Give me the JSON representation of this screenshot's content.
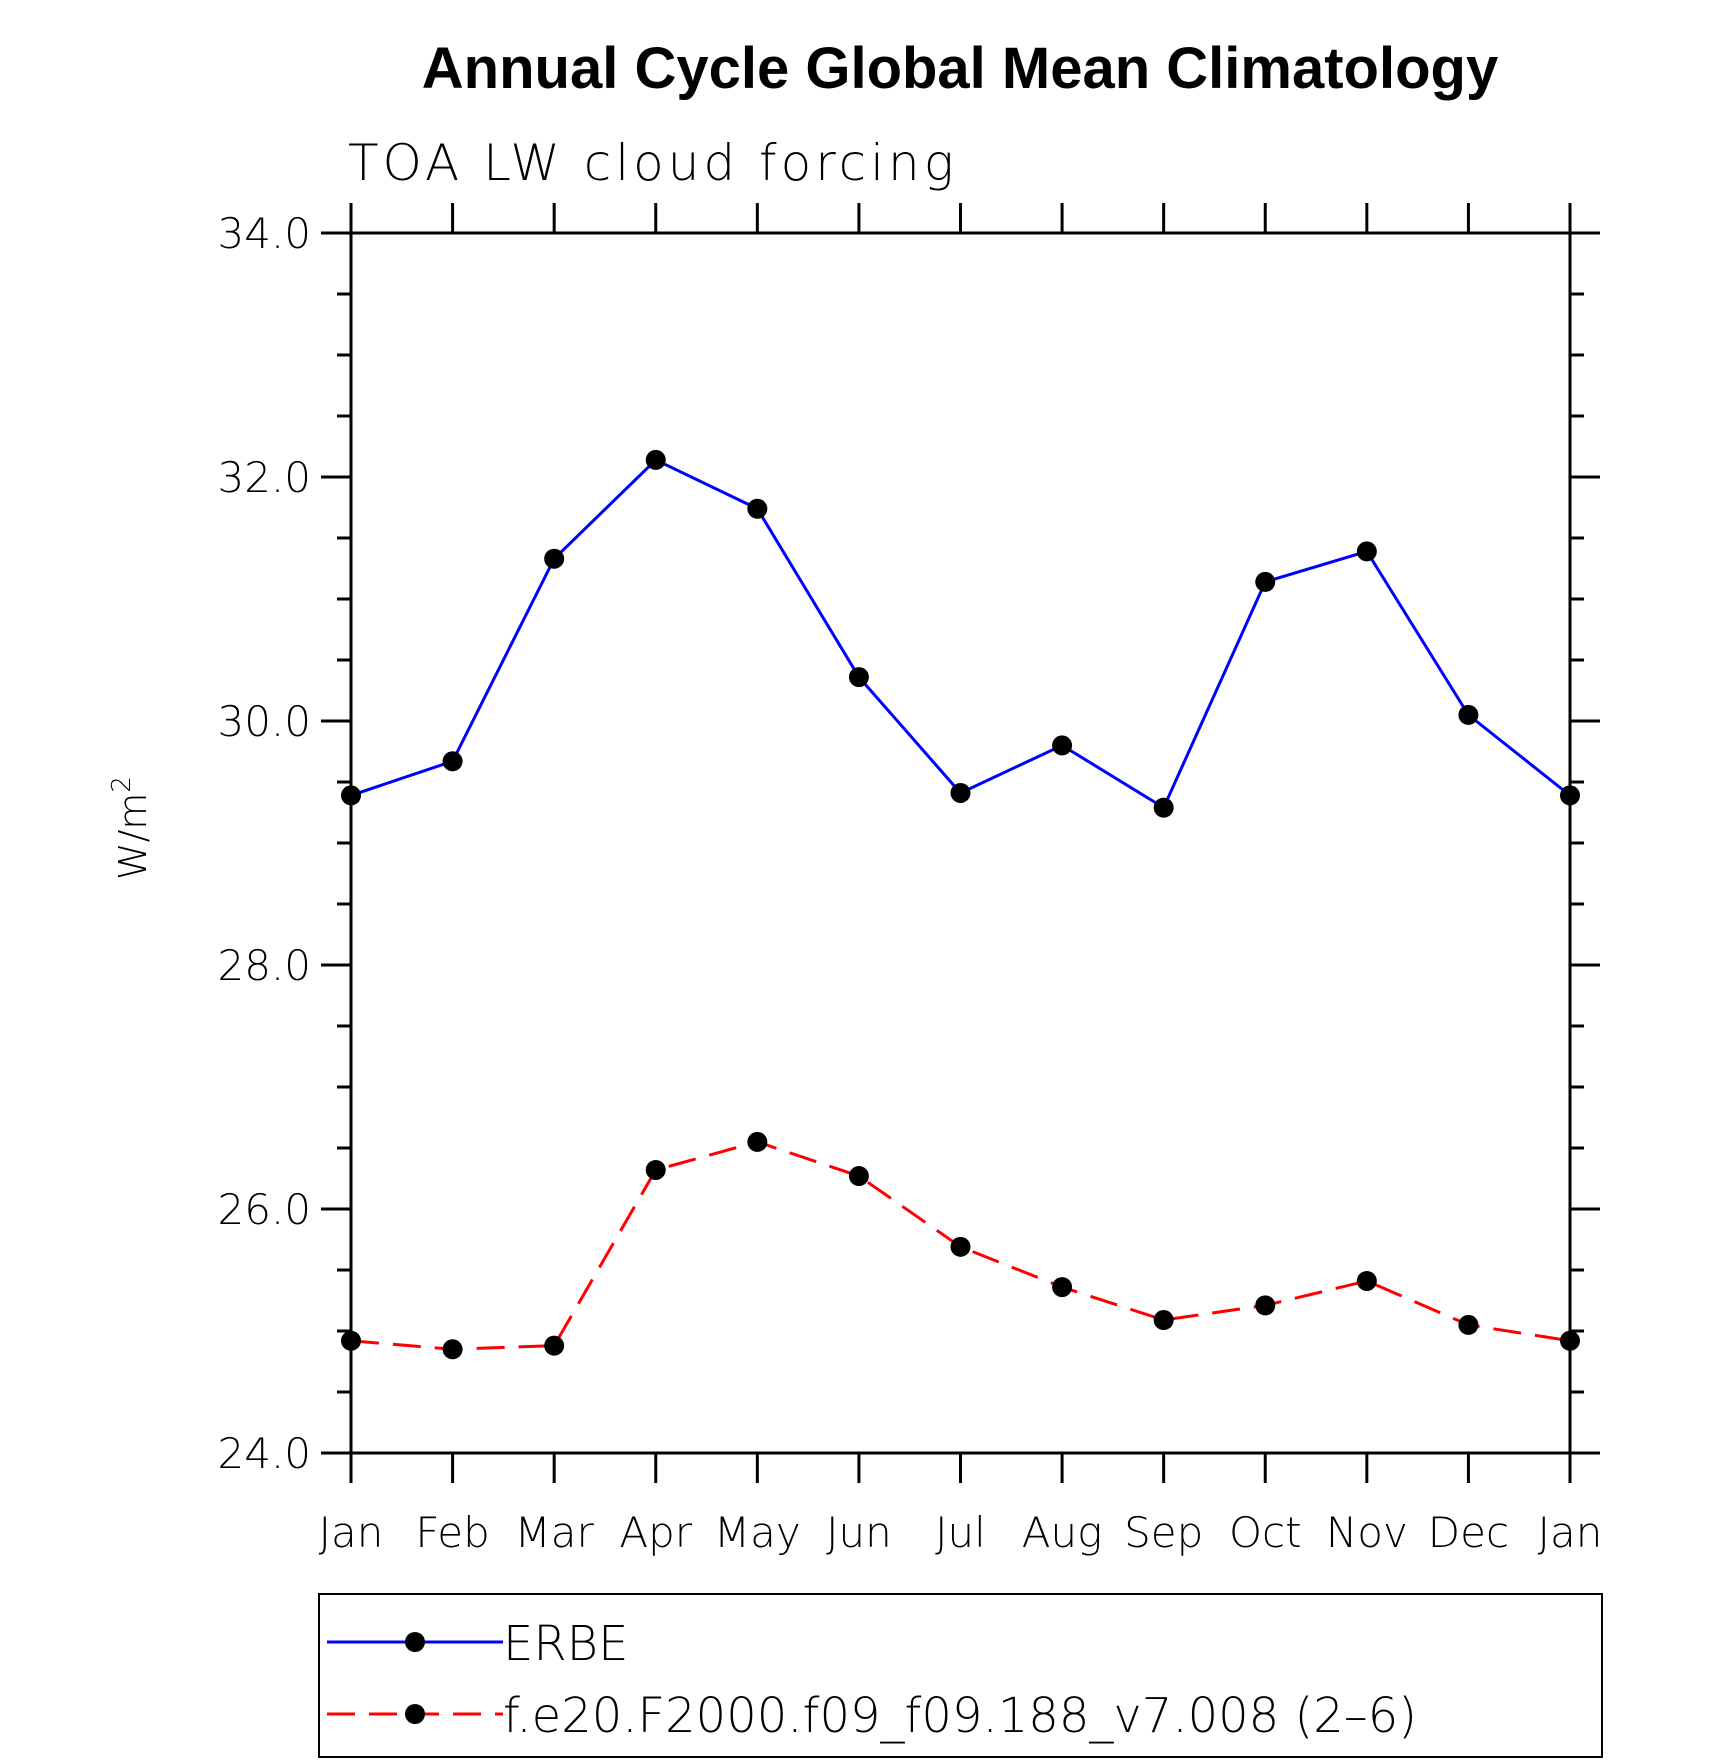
{
  "chart_data": {
    "type": "line",
    "title": "Annual Cycle Global Mean Climatology",
    "subtitle": "TOA LW cloud forcing",
    "ylabel": "W/m",
    "ylabel_sup": "2",
    "xlabel": "",
    "categories": [
      "Jan",
      "Feb",
      "Mar",
      "Apr",
      "May",
      "Jun",
      "Jul",
      "Aug",
      "Sep",
      "Oct",
      "Nov",
      "Dec",
      "Jan"
    ],
    "ylim": [
      24.0,
      34.0
    ],
    "yticks": [
      "24.0",
      "26.0",
      "28.0",
      "30.0",
      "32.0",
      "34.0"
    ],
    "grid": false,
    "legend_position": "bottom",
    "series": [
      {
        "name": "ERBE",
        "color": "#0000ff",
        "dash": "solid",
        "marker": "circle",
        "values": [
          29.39,
          29.67,
          31.33,
          32.14,
          31.74,
          30.36,
          29.41,
          29.8,
          29.29,
          31.14,
          31.39,
          30.05,
          29.39
        ]
      },
      {
        "name": "f.e20.F2000.f09_f09.188_v7.008 (2–6)",
        "color": "#ff0000",
        "dash": "dashed",
        "marker": "circle",
        "values": [
          24.92,
          24.85,
          24.88,
          26.32,
          26.55,
          26.27,
          25.69,
          25.36,
          25.09,
          25.21,
          25.41,
          25.05,
          24.92
        ]
      }
    ]
  }
}
